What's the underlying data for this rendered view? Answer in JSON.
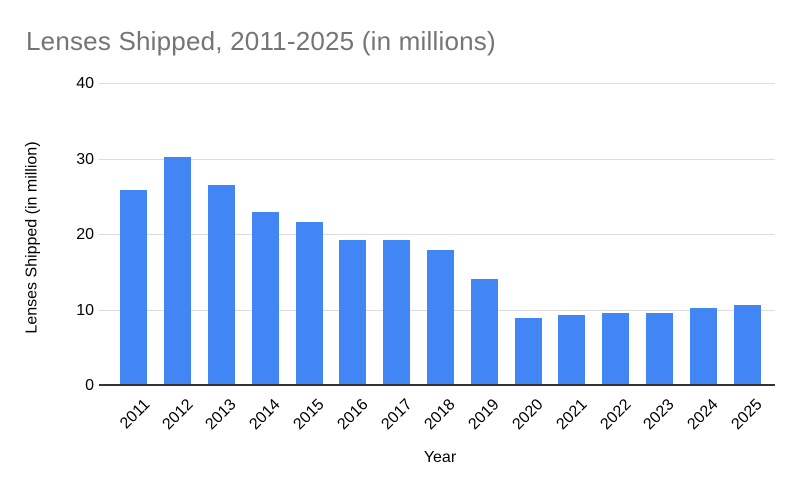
{
  "chart_data": {
    "type": "bar",
    "title": "Lenses Shipped, 2011-2025 (in millions)",
    "xlabel": "Year",
    "ylabel": "Lenses Shipped (in million)",
    "categories": [
      "2011",
      "2012",
      "2013",
      "2014",
      "2015",
      "2016",
      "2017",
      "2018",
      "2019",
      "2020",
      "2021",
      "2022",
      "2023",
      "2024",
      "2025"
    ],
    "values": [
      25.8,
      30.2,
      26.5,
      22.9,
      21.6,
      19.2,
      19.2,
      17.9,
      14.0,
      8.9,
      9.3,
      9.6,
      9.5,
      10.2,
      10.6
    ],
    "ylim": [
      0,
      40
    ],
    "yticks": [
      0,
      10,
      20,
      30,
      40
    ],
    "grid": true,
    "legend": "none"
  },
  "colors": {
    "bar": "#4285f4",
    "title_text": "#757575",
    "axis_text": "#000000",
    "gridline": "#dddddd",
    "axis_line": "#333333",
    "background": "#ffffff"
  }
}
